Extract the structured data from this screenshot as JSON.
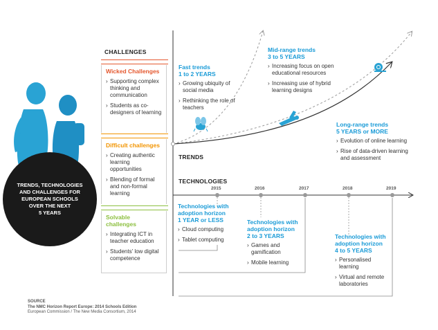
{
  "circle_label": [
    "TRENDS, TECHNOLOGIES",
    "AND CHALLENGES FOR",
    "EUROPEAN SCHOOLS",
    "OVER THE NEXT",
    "5 YEARS"
  ],
  "challenges": {
    "header": "CHALLENGES",
    "groups": [
      {
        "title": "Wicked Challenges",
        "color": "#e4572e",
        "items": [
          "Supporting complex thinking and communication",
          "Students as co-designers of learning"
        ]
      },
      {
        "title": "Difficult challenges",
        "color": "#f29400",
        "items": [
          "Creating authentic learning opportunities",
          "Blending of formal and non-formal learning"
        ]
      },
      {
        "title": "Solvable challenges",
        "color": "#8cbf3f",
        "items": [
          "Integrating ICT in teacher education",
          "Students' low digital competence"
        ]
      }
    ]
  },
  "trends": {
    "label": "TRENDS",
    "fast": {
      "title": "Fast trends",
      "horizon": "1 to 2 YEARS",
      "items": [
        "Growing ubiquity of social media",
        "Rethinking the role of teachers"
      ]
    },
    "mid": {
      "title": "Mid-range trends",
      "horizon": "3 to 5 YEARS",
      "items": [
        "Increasing focus on open educational resources",
        "Increasing use of hybrid learning designs"
      ]
    },
    "long": {
      "title": "Long-range trends",
      "horizon": "5 YEARS or MORE",
      "items": [
        "Evolution of online learning",
        "Rise of data-driven learning and assessment"
      ]
    }
  },
  "technologies": {
    "label": "TECHNOLOGIES",
    "years": [
      "2015",
      "2016",
      "2017",
      "2018",
      "2019"
    ],
    "h1": {
      "title": "Technologies with adoption horizon",
      "horizon": "1 YEAR or LESS",
      "items": [
        "Cloud computing",
        "Tablet computing"
      ]
    },
    "h2": {
      "title": "Technologies with adoption horizon",
      "horizon": "2 to 3 YEARS",
      "items": [
        "Games and gamification",
        "Mobile learning"
      ]
    },
    "h3": {
      "title": "Technologies with adoption horizon",
      "horizon": "4 to 5 YEARS",
      "items": [
        "Personalised learning",
        "Virtual and remote laboratories"
      ]
    }
  },
  "source": {
    "label": "SOURCE",
    "line1": "The NMC Horizon Report Europe: 2014 Schools Edition",
    "line2": "European Commission / The New Media Consortium, 2014"
  },
  "colors": {
    "accent": "#1a9bd7",
    "figure": "#29a3d4",
    "circle": "#1a1a1a"
  }
}
